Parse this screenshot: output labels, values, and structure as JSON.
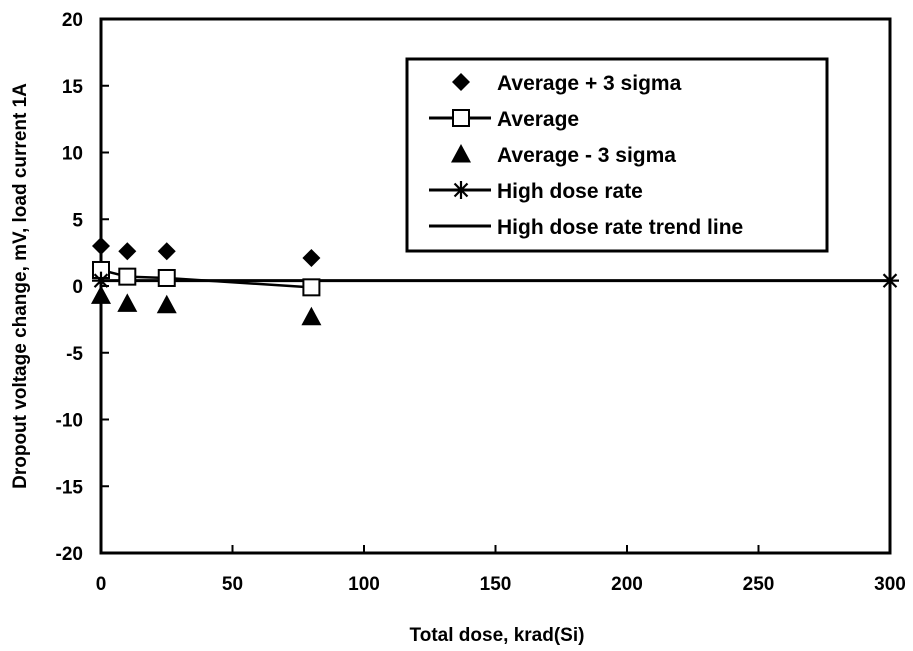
{
  "chart_data": {
    "type": "line",
    "title": "",
    "xlabel": "Total dose, krad(Si)",
    "ylabel": "Dropout voltage change, mV, load current 1A",
    "xlim": [
      0,
      300
    ],
    "ylim": [
      -20,
      20
    ],
    "x_ticks": [
      "0",
      "50",
      "100",
      "150",
      "200",
      "250",
      "300"
    ],
    "y_ticks": [
      "20",
      "15",
      "10",
      "5",
      "0",
      "-5",
      "-10",
      "-15",
      "-20"
    ],
    "grid": false,
    "legend_position": "top-right",
    "series": [
      {
        "name": "Average + 3 sigma",
        "marker": "diamond",
        "line": false,
        "x": [
          0,
          10,
          25,
          80
        ],
        "y": [
          3.0,
          2.6,
          2.6,
          2.1
        ]
      },
      {
        "name": "Average",
        "marker": "square-open",
        "line": true,
        "x": [
          0,
          10,
          25,
          80
        ],
        "y": [
          1.2,
          0.7,
          0.6,
          -0.1
        ]
      },
      {
        "name": "Average - 3 sigma",
        "marker": "triangle",
        "line": false,
        "x": [
          0,
          10,
          25,
          80
        ],
        "y": [
          -0.7,
          -1.3,
          -1.4,
          -2.3
        ]
      },
      {
        "name": "High dose rate",
        "marker": "asterisk",
        "line": false,
        "x": [
          0,
          300
        ],
        "y": [
          0.4,
          0.4
        ]
      },
      {
        "name": "High dose rate trend line",
        "marker": "none",
        "line": true,
        "x": [
          0,
          300
        ],
        "y": [
          0.4,
          0.4
        ]
      }
    ]
  }
}
